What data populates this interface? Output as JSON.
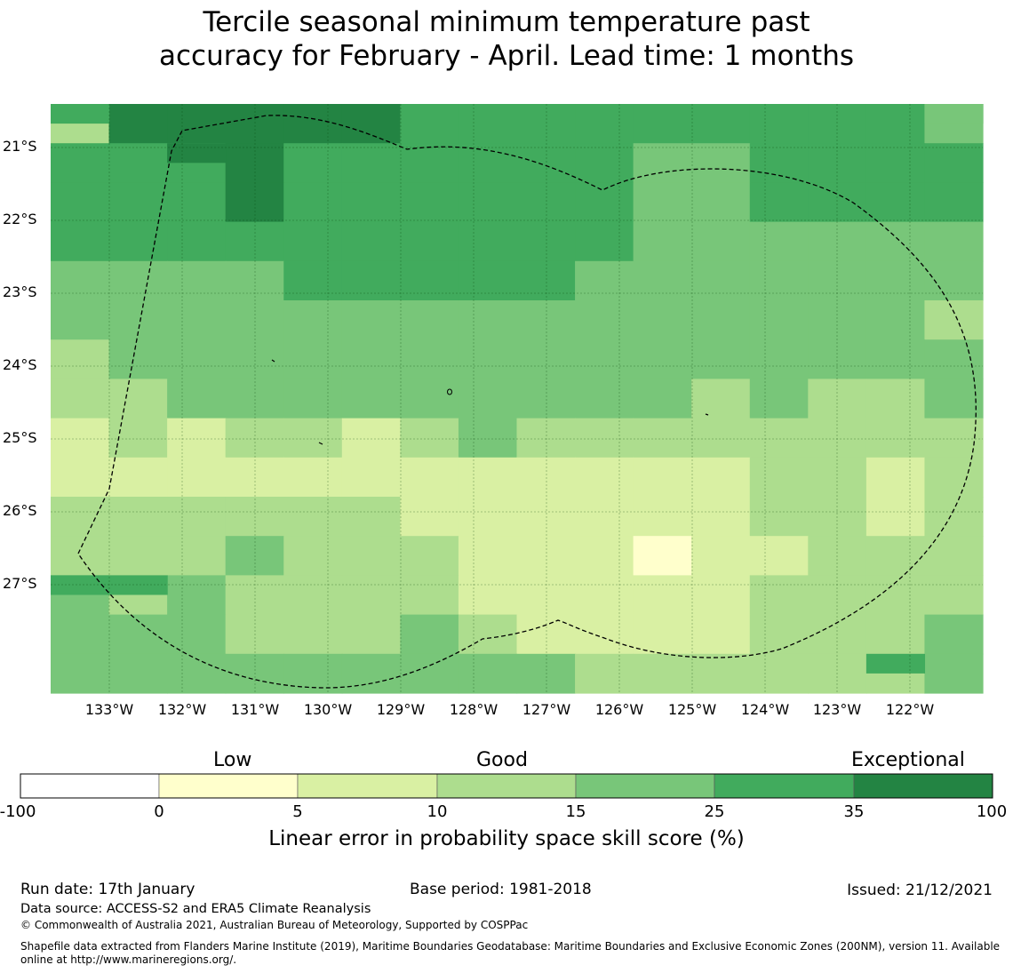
{
  "title": {
    "line1": "Tercile seasonal minimum temperature past",
    "line2": "accuracy for February - April. Lead time: 1 months"
  },
  "map": {
    "lat_labels": [
      "21°S",
      "22°S",
      "23°S",
      "24°S",
      "25°S",
      "26°S",
      "27°S"
    ],
    "lon_labels": [
      "133°W",
      "132°W",
      "131°W",
      "130°W",
      "129°W",
      "128°W",
      "127°W",
      "126°W",
      "125°W",
      "124°W",
      "123°W",
      "122°W"
    ],
    "grid_columns": 16,
    "grid_rows": 15,
    "skill_grid": [
      [
        3,
        6,
        6,
        6,
        6,
        6,
        5,
        5,
        5,
        5,
        5,
        5,
        5,
        5,
        5,
        4
      ],
      [
        5,
        5,
        5,
        6,
        5,
        5,
        5,
        5,
        5,
        5,
        4,
        4,
        5,
        5,
        5,
        5
      ],
      [
        5,
        5,
        5,
        6,
        5,
        5,
        5,
        5,
        5,
        5,
        4,
        4,
        5,
        5,
        5,
        5
      ],
      [
        5,
        5,
        5,
        5,
        5,
        5,
        5,
        5,
        5,
        5,
        4,
        4,
        4,
        4,
        4,
        4
      ],
      [
        4,
        4,
        4,
        4,
        5,
        5,
        5,
        5,
        5,
        4,
        4,
        4,
        4,
        4,
        4,
        4
      ],
      [
        4,
        4,
        4,
        4,
        4,
        4,
        4,
        4,
        4,
        4,
        4,
        4,
        4,
        4,
        4,
        3
      ],
      [
        3,
        4,
        4,
        4,
        4,
        4,
        4,
        4,
        4,
        4,
        4,
        4,
        4,
        4,
        4,
        4
      ],
      [
        3,
        3,
        4,
        4,
        4,
        4,
        4,
        4,
        4,
        4,
        4,
        3,
        4,
        3,
        3,
        4
      ],
      [
        2,
        3,
        2,
        3,
        3,
        2,
        3,
        4,
        3,
        3,
        3,
        3,
        3,
        3,
        3,
        3
      ],
      [
        2,
        2,
        2,
        2,
        2,
        2,
        2,
        2,
        2,
        2,
        2,
        2,
        3,
        3,
        2,
        3
      ],
      [
        3,
        3,
        3,
        3,
        3,
        3,
        2,
        2,
        2,
        2,
        2,
        2,
        3,
        3,
        2,
        3
      ],
      [
        3,
        3,
        3,
        4,
        3,
        3,
        3,
        2,
        2,
        2,
        1,
        2,
        2,
        3,
        3,
        3
      ],
      [
        4,
        3,
        4,
        3,
        3,
        3,
        3,
        2,
        2,
        2,
        2,
        2,
        3,
        3,
        3,
        3
      ],
      [
        4,
        4,
        4,
        3,
        3,
        3,
        4,
        3,
        2,
        2,
        2,
        2,
        3,
        3,
        3,
        4
      ],
      [
        4,
        4,
        4,
        4,
        4,
        4,
        4,
        4,
        4,
        3,
        3,
        3,
        3,
        3,
        3,
        4
      ]
    ],
    "skill_grid_bottom_row": [
      4,
      4,
      4,
      4,
      4,
      4,
      4,
      4,
      4,
      3,
      3,
      3,
      3,
      3,
      3,
      4
    ],
    "patches": [
      {
        "row": 0,
        "col": 0,
        "value": 5
      },
      {
        "row": 0,
        "col": 15,
        "value": 4
      },
      {
        "row": 1,
        "col": 2,
        "value": 6
      },
      {
        "row": 12,
        "col": 0,
        "value": 5
      },
      {
        "row": 12,
        "col": 1,
        "value": 5
      },
      {
        "row": 14,
        "col": 0,
        "value": 4
      },
      {
        "row": 14,
        "col": 14,
        "value": 5
      }
    ]
  },
  "colorbar": {
    "headers": [
      "Low",
      "Good",
      "Exceptional"
    ],
    "ticks": [
      "-100",
      "0",
      "5",
      "10",
      "15",
      "25",
      "35",
      "100"
    ],
    "colors": [
      "#ffffff",
      "#ffffcc",
      "#d9f0a3",
      "#addd8e",
      "#78c679",
      "#41ab5d",
      "#238443"
    ],
    "label": "Linear error in probability space skill score (%)"
  },
  "footer": {
    "run_date": "Run date: 17th January",
    "base_period": "Base period: 1981-2018",
    "issued": "Issued: 21/12/2021",
    "data_source": "Data source: ACCESS-S2 and ERA5 Climate Reanalysis",
    "copyright": "© Commonwealth of Australia 2021, Australian Bureau of Meteorology, Supported by COSPPac",
    "shapefile_1": "Shapefile data extracted from Flanders Marine Institute (2019), Maritime Boundaries Geodatabase: Maritime Boundaries and Exclusive Economic Zones (200NM), version 11. Available",
    "shapefile_2": "online at http://www.marineregions.org/."
  }
}
